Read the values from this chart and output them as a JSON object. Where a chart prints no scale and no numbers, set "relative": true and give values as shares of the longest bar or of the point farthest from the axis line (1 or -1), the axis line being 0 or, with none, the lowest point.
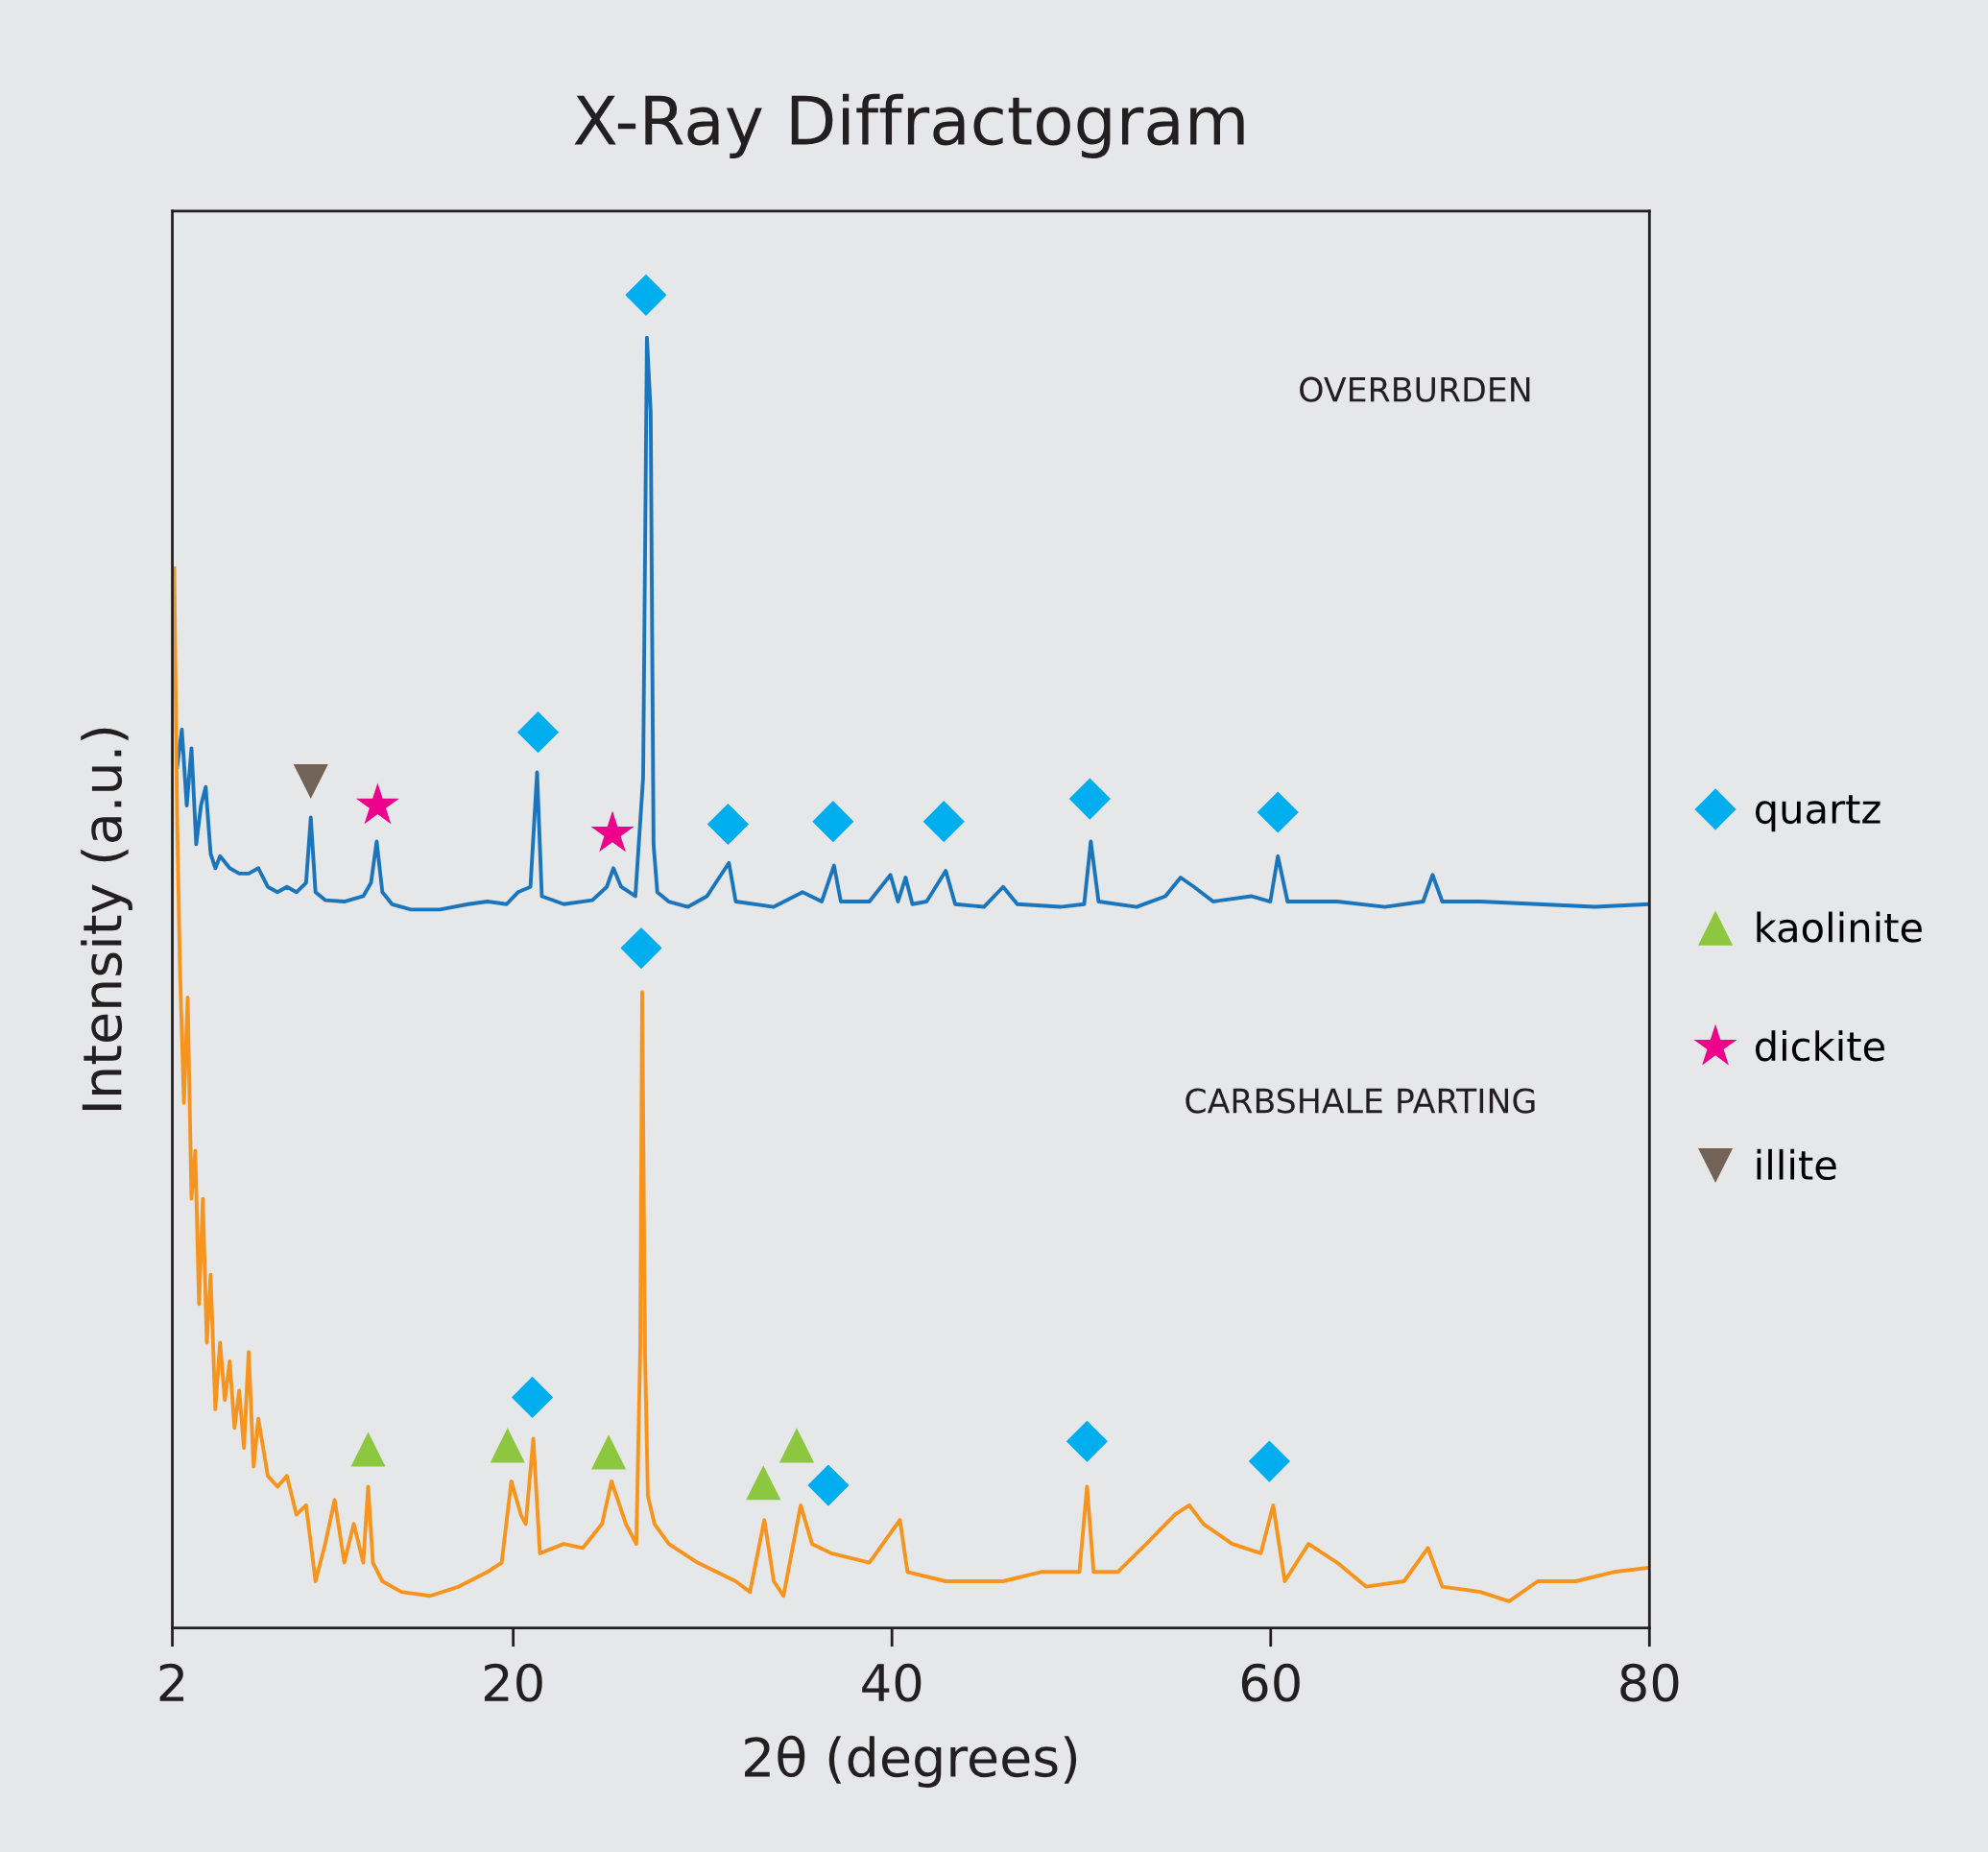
{
  "chart_data": {
    "type": "line",
    "title": "X-Ray Diffractogram",
    "xlabel": "2θ (degrees)",
    "ylabel": "Intensity (a.u.)",
    "relative": true,
    "xlim": [
      2,
      80
    ],
    "xticks": [
      2,
      20,
      40,
      60,
      80
    ],
    "grid": false,
    "legend": "right",
    "line_style": "solid",
    "annotations": [
      "OVERBURDEN",
      "CARBSHALE PARTING"
    ],
    "series": [
      {
        "type": "line",
        "color": "#1a75bc",
        "x": [
          2.25,
          2.5,
          2.76,
          3.01,
          3.26,
          3.51,
          3.76,
          4.02,
          4.27,
          4.52,
          5.03,
          5.53,
          6.03,
          6.54,
          7.04,
          7.55,
          8.05,
          8.55,
          9.06,
          9.31,
          9.56,
          10.07,
          11.08,
          12.08,
          12.49,
          12.79,
          13.09,
          13.6,
          14.6,
          16.12,
          17.63,
          18.64,
          19.65,
          20.25,
          20.91,
          21.26,
          21.51,
          22.67,
          24.18,
          24.94,
          25.29,
          25.7,
          26.45,
          26.86,
          27.06,
          27.26,
          27.41,
          27.61,
          28.21,
          29.23,
          30.23,
          31.39,
          31.75,
          33.76,
          35.28,
          36.29,
          36.94,
          37.3,
          38.81,
          39.92,
          40.32,
          40.72,
          41.08,
          41.83,
          42.84,
          43.34,
          44.86,
          45.87,
          46.62,
          48.89,
          50.15,
          50.5,
          50.91,
          52.92,
          54.44,
          55.24,
          55.95,
          56.96,
          58.97,
          59.98,
          60.38,
          60.89,
          63.51,
          66.03,
          68.05,
          68.55,
          69.06,
          71.07,
          74.1,
          77.12,
          79.89
        ],
        "values": [
          0.646,
          0.674,
          0.617,
          0.66,
          0.588,
          0.617,
          0.631,
          0.581,
          0.57,
          0.579,
          0.57,
          0.566,
          0.566,
          0.57,
          0.556,
          0.552,
          0.556,
          0.552,
          0.559,
          0.608,
          0.552,
          0.546,
          0.545,
          0.549,
          0.559,
          0.59,
          0.552,
          0.543,
          0.539,
          0.539,
          0.543,
          0.545,
          0.543,
          0.552,
          0.556,
          0.642,
          0.549,
          0.543,
          0.546,
          0.556,
          0.57,
          0.556,
          0.549,
          0.638,
          0.968,
          0.912,
          0.588,
          0.552,
          0.545,
          0.541,
          0.549,
          0.574,
          0.545,
          0.541,
          0.552,
          0.545,
          0.572,
          0.545,
          0.545,
          0.565,
          0.545,
          0.563,
          0.543,
          0.545,
          0.568,
          0.543,
          0.541,
          0.556,
          0.543,
          0.541,
          0.543,
          0.59,
          0.545,
          0.541,
          0.549,
          0.563,
          0.556,
          0.545,
          0.549,
          0.545,
          0.579,
          0.545,
          0.545,
          0.541,
          0.545,
          0.565,
          0.545,
          0.545,
          0.543,
          0.541,
          0.543
        ]
      },
      {
        "type": "line",
        "color": "#f7941d",
        "x": [
          2.1,
          2.25,
          2.4,
          2.61,
          2.81,
          3.01,
          3.21,
          3.41,
          3.61,
          3.82,
          4.02,
          4.27,
          4.52,
          4.77,
          5.03,
          5.28,
          5.53,
          5.78,
          6.03,
          6.29,
          6.54,
          7.04,
          7.55,
          8.05,
          8.55,
          9.06,
          9.56,
          10.07,
          10.57,
          11.08,
          11.58,
          12.08,
          12.34,
          12.59,
          13.09,
          14.1,
          15.61,
          17.13,
          18.64,
          19.39,
          19.9,
          20.4,
          20.66,
          21.06,
          21.41,
          22.67,
          23.68,
          24.69,
          25.19,
          25.95,
          26.5,
          26.71,
          26.81,
          26.96,
          27.11,
          27.46,
          28.22,
          29.73,
          30.74,
          31.75,
          32.5,
          33.26,
          33.76,
          34.27,
          35.18,
          35.78,
          36.79,
          38.81,
          40.42,
          40.82,
          42.84,
          45.87,
          47.88,
          49.9,
          50.3,
          50.65,
          51.92,
          53.43,
          54.94,
          55.7,
          56.45,
          57.97,
          59.48,
          60.13,
          60.74,
          62.0,
          63.51,
          65.03,
          67.04,
          68.3,
          69.06,
          71.07,
          72.59,
          74.1,
          76.11,
          78.13,
          79.89
        ],
        "values": [
          0.795,
          0.61,
          0.495,
          0.394,
          0.473,
          0.322,
          0.358,
          0.243,
          0.322,
          0.214,
          0.265,
          0.164,
          0.214,
          0.171,
          0.2,
          0.15,
          0.178,
          0.135,
          0.207,
          0.121,
          0.157,
          0.114,
          0.106,
          0.114,
          0.085,
          0.092,
          0.035,
          0.063,
          0.096,
          0.049,
          0.078,
          0.049,
          0.106,
          0.049,
          0.035,
          0.027,
          0.024,
          0.031,
          0.042,
          0.049,
          0.11,
          0.085,
          0.078,
          0.142,
          0.056,
          0.063,
          0.06,
          0.078,
          0.11,
          0.078,
          0.063,
          0.211,
          0.477,
          0.207,
          0.099,
          0.078,
          0.063,
          0.049,
          0.042,
          0.035,
          0.027,
          0.081,
          0.035,
          0.024,
          0.092,
          0.063,
          0.056,
          0.049,
          0.081,
          0.042,
          0.035,
          0.035,
          0.042,
          0.042,
          0.106,
          0.042,
          0.042,
          0.063,
          0.085,
          0.092,
          0.078,
          0.063,
          0.056,
          0.092,
          0.035,
          0.063,
          0.049,
          0.031,
          0.035,
          0.06,
          0.031,
          0.027,
          0.02,
          0.035,
          0.035,
          0.042,
          0.045
        ]
      },
      {
        "name": "quartz",
        "type": "scatter",
        "marker": "diamond",
        "color": "#00aeef",
        "x": [
          27.01,
          21.31,
          31.34,
          36.89,
          42.74,
          50.45,
          60.38,
          26.76,
          21.01,
          36.64,
          50.3,
          59.93
        ],
        "values": [
          1.0,
          0.672,
          0.603,
          0.605,
          0.605,
          0.622,
          0.612,
          0.51,
          0.173,
          0.107,
          0.14,
          0.125
        ]
      },
      {
        "name": "kaolinite",
        "type": "scatter",
        "marker": "triangle",
        "color": "#8dc63f",
        "x": [
          12.34,
          19.7,
          25.04,
          33.21,
          34.97
        ],
        "values": [
          0.134,
          0.137,
          0.132,
          0.109,
          0.137
        ]
      },
      {
        "name": "dickite",
        "type": "scatter",
        "marker": "star",
        "color": "#ec008c",
        "x": [
          12.84,
          25.24
        ],
        "values": [
          0.617,
          0.596
        ]
      },
      {
        "name": "illite",
        "type": "scatter",
        "marker": "triangle_down",
        "color": "#736357",
        "x": [
          9.31
        ],
        "values": [
          0.635
        ]
      }
    ]
  }
}
